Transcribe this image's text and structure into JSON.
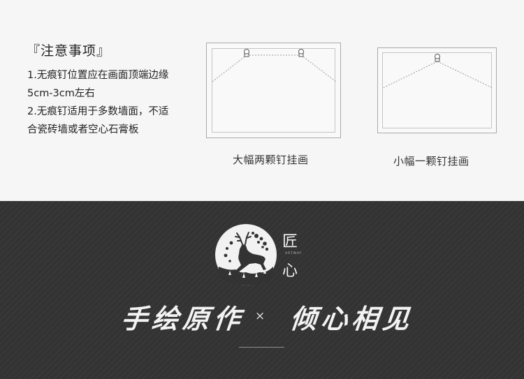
{
  "notes": {
    "title": "『注意事项』",
    "lines": [
      "1.无痕钉位置应在画面顶端边缘",
      "5cm-3cm左右",
      "2.无痕钉适用于多数墙面，不适",
      "合瓷砖墙或者空心石膏板"
    ]
  },
  "illustrations": {
    "large": {
      "caption": "大幅两颗钉挂画",
      "nail_count": 2
    },
    "small": {
      "caption": "小幅一颗钉挂画",
      "nail_count": 1
    }
  },
  "brand": {
    "logo_icon": "deer-emblem-icon",
    "chars": [
      "匠",
      "心"
    ],
    "sub": "ARTWAY",
    "slogan_left": "手绘原作",
    "separator": "×",
    "slogan_right": "倾心相见"
  },
  "colors": {
    "top_bg": "#f6f6f6",
    "bottom_bg": "#333333",
    "text_dark": "#222222",
    "text_light": "#f3f3f3"
  }
}
